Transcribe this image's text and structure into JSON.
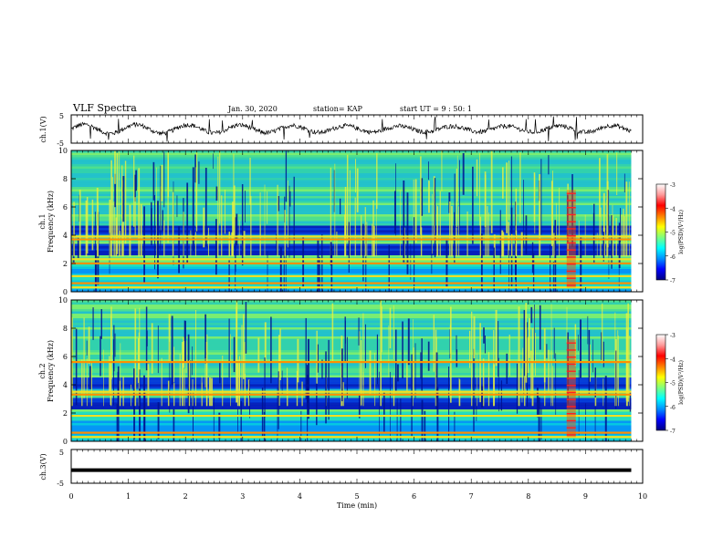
{
  "header": {
    "title": "VLF Spectra",
    "date": "Jan. 30, 2020",
    "station": "station= KAP",
    "start_ut": "start UT =  9 : 50: 1"
  },
  "colormap": {
    "stops": [
      "#00007f",
      "#0000ff",
      "#0090ff",
      "#00ffff",
      "#7fff7f",
      "#ffff00",
      "#ff7f00",
      "#ff0000",
      "#ff9999",
      "#ffffff"
    ]
  },
  "chart_data": [
    {
      "type": "line",
      "name": "ch1-waveform",
      "ylabel": "ch.1(V)",
      "ylim": [
        -5,
        5
      ],
      "yticks": [
        "5",
        "-5"
      ],
      "xlim": [
        0,
        10
      ],
      "note_series": "continuous noisy waveform oscillating roughly between -2 and 2 V over 0–9.8 min",
      "approx_envelope": {
        "x": [
          0,
          1,
          2,
          3,
          4,
          5,
          6,
          7,
          8,
          9,
          9.8
        ],
        "y": [
          0.2,
          0.5,
          -0.3,
          0.6,
          -0.2,
          0.4,
          -0.4,
          0.5,
          0.2,
          0.1,
          0.0
        ]
      }
    },
    {
      "type": "heatmap",
      "name": "ch1-spectrogram",
      "ylabel": "ch.1\nFrequency (kHz)",
      "ylim": [
        0,
        10
      ],
      "yticks": [
        "0",
        "2",
        "4",
        "6",
        "8",
        "10"
      ],
      "xlim": [
        0,
        10
      ],
      "data_x_end": 9.8,
      "colorbar": {
        "label": "log(PSD)(V²/Hz)",
        "range": [
          -7,
          -3
        ],
        "ticks": [
          "-3",
          "-4",
          "-5",
          "-6",
          "-7"
        ]
      },
      "persistent_bands_khz": [
        0.3,
        0.6,
        1.1,
        2.0,
        2.3,
        3.7,
        3.9
      ],
      "dark_band_ranges_khz": [
        [
          2.6,
          3.5
        ],
        [
          4.1,
          4.8
        ]
      ],
      "bright_event_time_min": 8.75
    },
    {
      "type": "heatmap",
      "name": "ch2-spectrogram",
      "ylabel": "ch.2\nFrequency (kHz)",
      "ylim": [
        0,
        10
      ],
      "yticks": [
        "0",
        "2",
        "4",
        "6",
        "8",
        "10"
      ],
      "xlim": [
        0,
        10
      ],
      "data_x_end": 9.8,
      "colorbar": {
        "label": "log(PSD)(V²/Hz)",
        "range": [
          -7,
          -3
        ],
        "ticks": [
          "-3",
          "-4",
          "-5",
          "-6",
          "-7"
        ]
      },
      "persistent_bands_khz": [
        0.3,
        0.6,
        1.8,
        3.3,
        3.5,
        5.6
      ],
      "dark_band_ranges_khz": [
        [
          2.3,
          3.2
        ],
        [
          3.8,
          4.6
        ]
      ],
      "bright_event_time_min": 8.75
    },
    {
      "type": "line",
      "name": "ch3-waveform",
      "ylabel": "ch.3(V)",
      "ylim": [
        -5,
        5
      ],
      "yticks": [
        "5",
        "-5"
      ],
      "xlim": [
        0,
        10
      ],
      "xlabel": "Time (min)",
      "xticks": [
        "0",
        "1",
        "2",
        "3",
        "4",
        "5",
        "6",
        "7",
        "8",
        "9",
        "10"
      ],
      "x": [
        0,
        9.8
      ],
      "y": [
        -1.1,
        -1.1
      ]
    }
  ]
}
